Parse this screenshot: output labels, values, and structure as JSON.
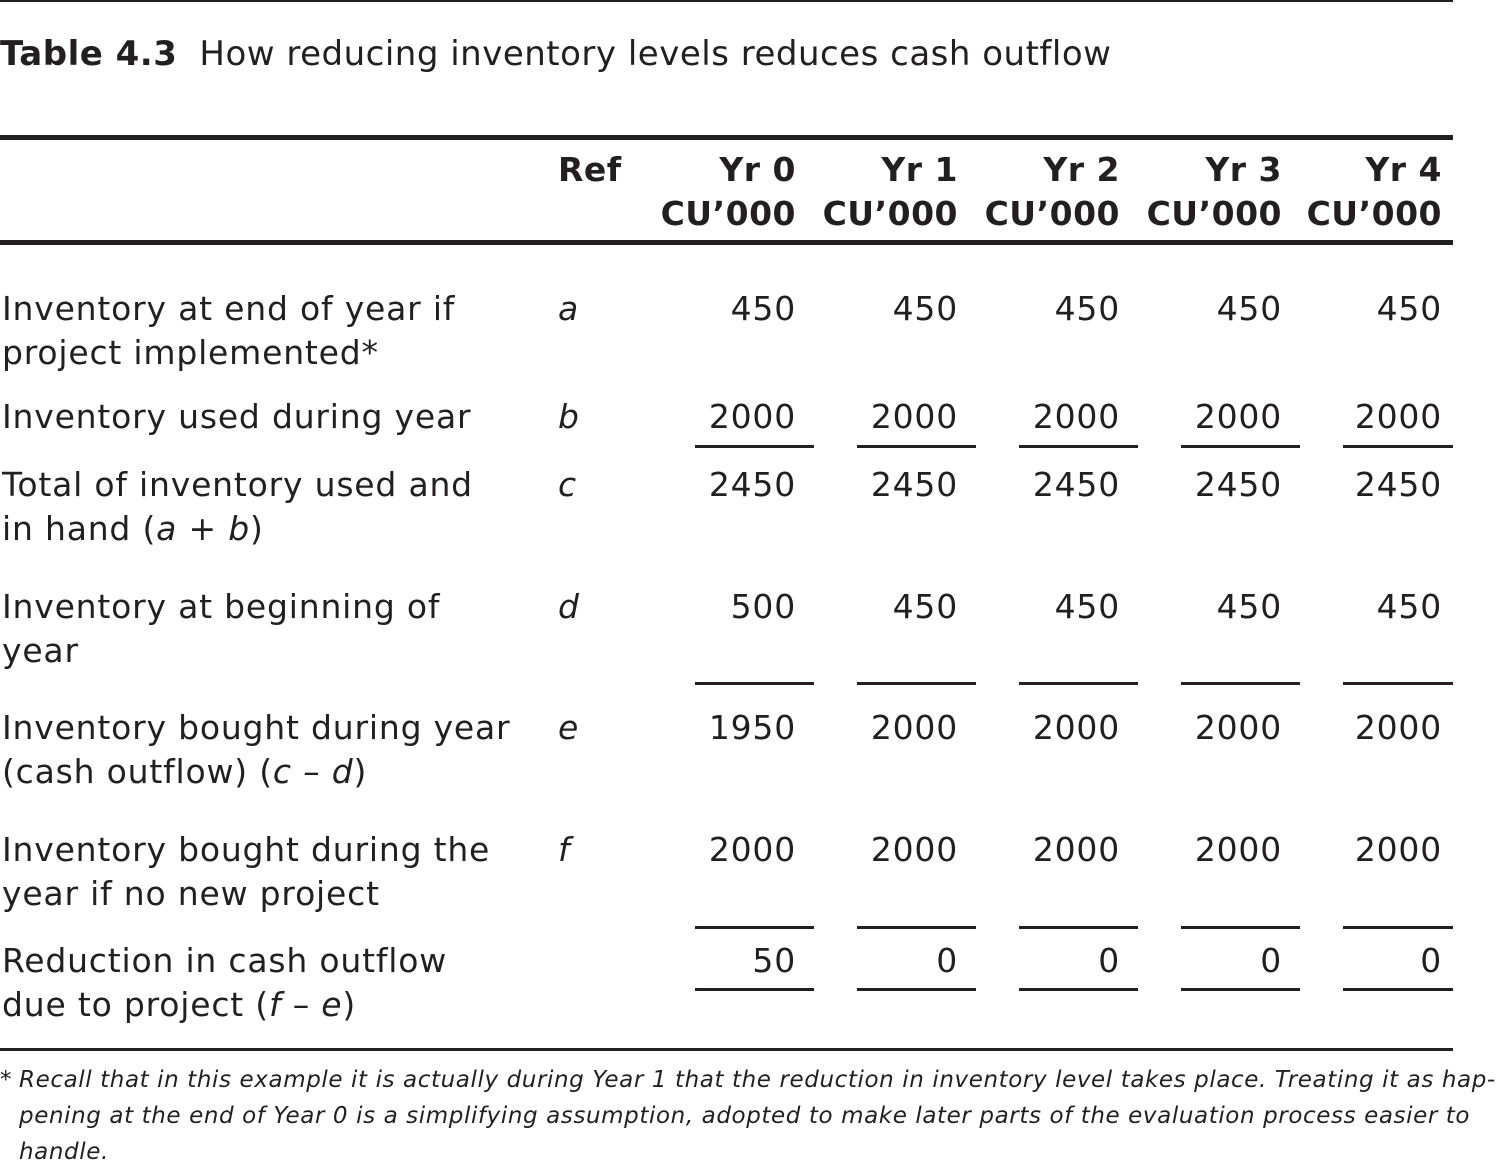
{
  "caption": {
    "label": "Table 4.3",
    "text": "How reducing inventory levels reduces cash outflow"
  },
  "header": {
    "ref": "Ref",
    "years": [
      {
        "year": "Yr 0",
        "unit": "CU’000"
      },
      {
        "year": "Yr 1",
        "unit": "CU’000"
      },
      {
        "year": "Yr 2",
        "unit": "CU’000"
      },
      {
        "year": "Yr 3",
        "unit": "CU’000"
      },
      {
        "year": "Yr 4",
        "unit": "CU’000"
      }
    ]
  },
  "rows": [
    {
      "desc_lines": [
        "Inventory at end of year if",
        "project implemented*"
      ],
      "ref": "a",
      "values": [
        "450",
        "450",
        "450",
        "450",
        "450"
      ],
      "underline": false
    },
    {
      "desc_lines": [
        "Inventory used during year"
      ],
      "ref": "b",
      "values": [
        "2000",
        "2000",
        "2000",
        "2000",
        "2000"
      ],
      "underline": true
    },
    {
      "desc_lines": [
        "Total of inventory used and"
      ],
      "desc_line2": {
        "pre": "in hand (",
        "v1": "a",
        "op": " + ",
        "v2": "b",
        "post": ")"
      },
      "ref": "c",
      "values": [
        "2450",
        "2450",
        "2450",
        "2450",
        "2450"
      ],
      "underline": false
    },
    {
      "desc_lines": [
        "Inventory at beginning of",
        "year"
      ],
      "ref": "d",
      "values": [
        "500",
        "450",
        "450",
        "450",
        "450"
      ],
      "underline": true
    },
    {
      "desc_lines": [
        "Inventory bought during year"
      ],
      "desc_line2": {
        "pre": "(cash outflow) (",
        "v1": "c",
        "op": " – ",
        "v2": "d",
        "post": ")"
      },
      "ref": "e",
      "values": [
        "1950",
        "2000",
        "2000",
        "2000",
        "2000"
      ],
      "underline": false
    },
    {
      "desc_lines": [
        "Inventory bought during the",
        "year if no new project"
      ],
      "ref": "f",
      "values": [
        "2000",
        "2000",
        "2000",
        "2000",
        "2000"
      ],
      "underline": true
    },
    {
      "desc_lines": [
        "Reduction in cash outflow"
      ],
      "desc_line2": {
        "pre": "due to project (",
        "v1": "f",
        "op": " – ",
        "v2": "e",
        "post": ")"
      },
      "ref": "",
      "values": [
        "50",
        "0",
        "0",
        "0",
        "0"
      ],
      "underline": true
    }
  ],
  "footnote": {
    "mark": "*",
    "lines": [
      "Recall that in this example it is actually during Year 1 that the reduction in inventory level takes place. Treating it as hap-",
      "pening at the end of Year 0 is a simplifying assumption, adopted to make later parts of the evaluation process easier to",
      "handle."
    ]
  }
}
